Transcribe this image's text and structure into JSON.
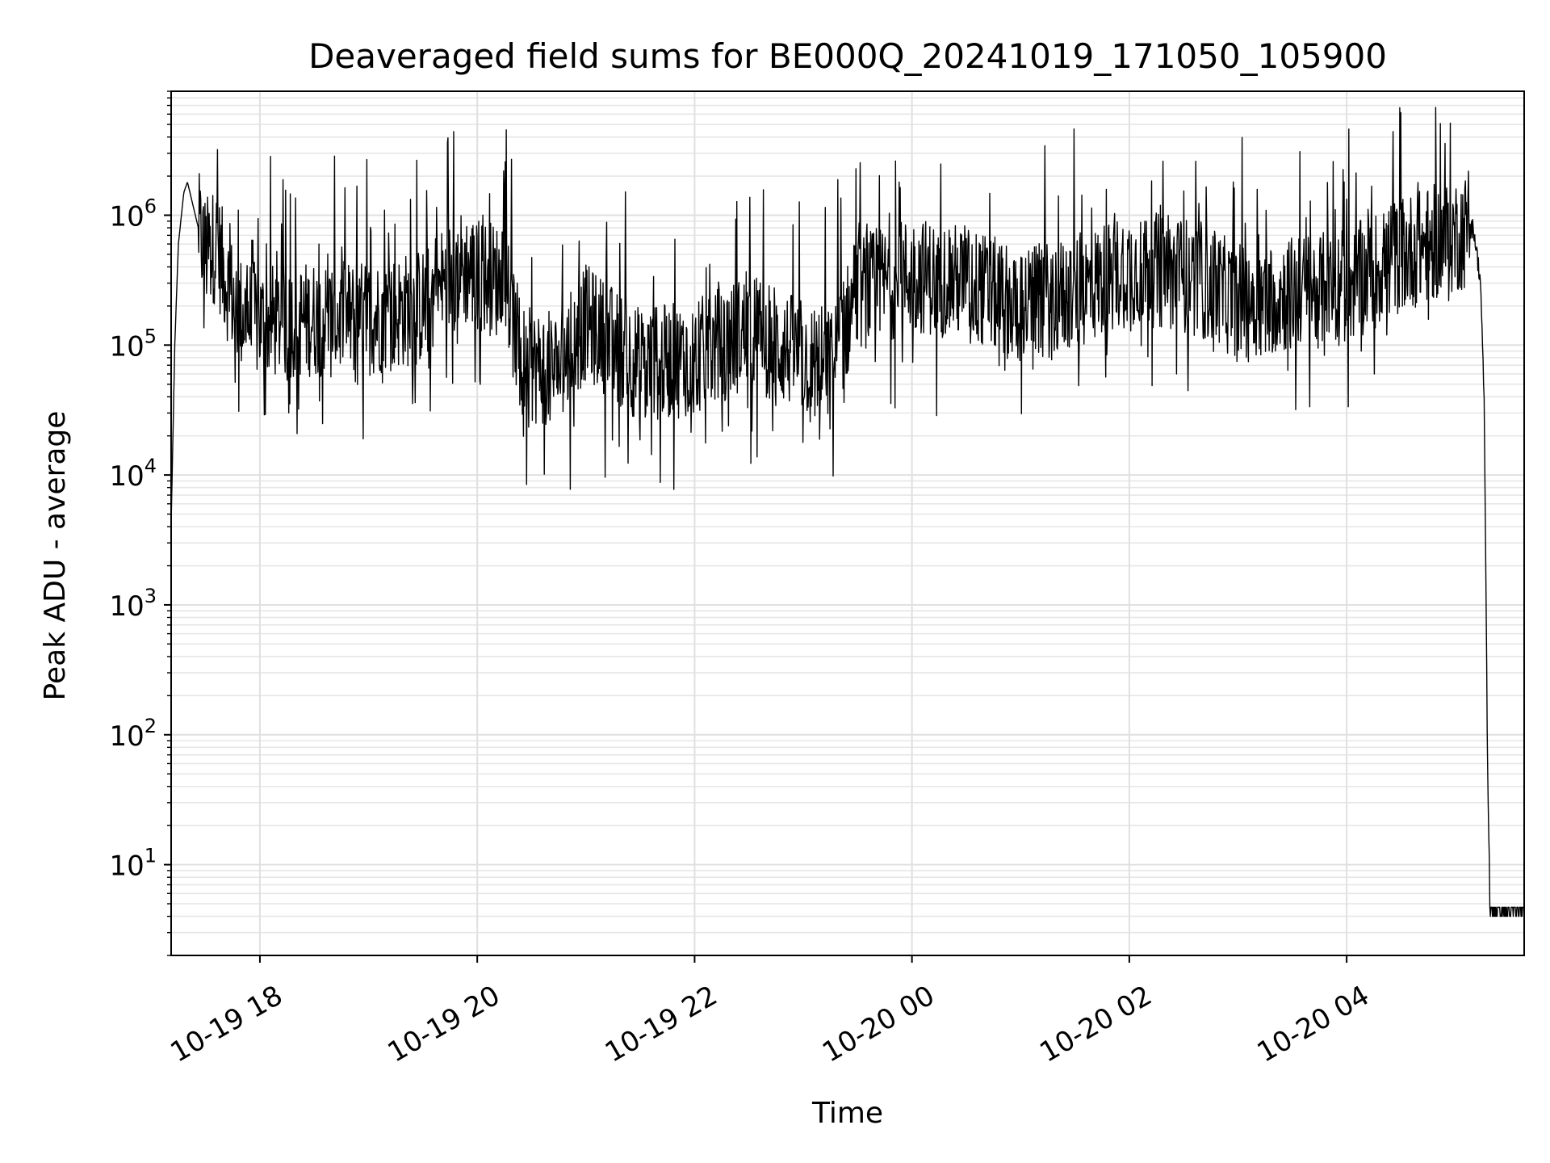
{
  "chart_data": {
    "type": "line",
    "title": "Deaveraged field sums for BE000Q_20241019_171050_105900",
    "xlabel": "Time",
    "ylabel": "Peak ADU - average",
    "yscale": "log",
    "grid": true,
    "xlim": [
      "2024-10-19 17:11",
      "2024-10-20 05:38"
    ],
    "ylim": [
      2,
      9000000
    ],
    "x_ticks": [
      {
        "value": "2024-10-19 18:00",
        "label": "10-19 18"
      },
      {
        "value": "2024-10-19 20:00",
        "label": "10-19 20"
      },
      {
        "value": "2024-10-19 22:00",
        "label": "10-19 22"
      },
      {
        "value": "2024-10-20 00:00",
        "label": "10-20 00"
      },
      {
        "value": "2024-10-20 02:00",
        "label": "10-20 02"
      },
      {
        "value": "2024-10-20 04:00",
        "label": "10-20 04"
      }
    ],
    "y_ticks": [
      {
        "value": 10,
        "base": "10",
        "exp": "1"
      },
      {
        "value": 100,
        "base": "10",
        "exp": "2"
      },
      {
        "value": 1000,
        "base": "10",
        "exp": "3"
      },
      {
        "value": 10000,
        "base": "10",
        "exp": "4"
      },
      {
        "value": 100000,
        "base": "10",
        "exp": "5"
      },
      {
        "value": 1000000,
        "base": "10",
        "exp": "6"
      }
    ],
    "series": [
      {
        "color": "#000000",
        "x": [
          "2024-10-19 17:11",
          "2024-10-19 17:13",
          "2024-10-19 17:15",
          "2024-10-19 17:18",
          "2024-10-19 17:20",
          "2024-10-19 17:23",
          "2024-10-19 17:27",
          "2024-10-19 17:30",
          "2024-10-19 17:36",
          "2024-10-19 17:42",
          "2024-10-19 17:48",
          "2024-10-19 18:00",
          "2024-10-19 18:30",
          "2024-10-19 19:00",
          "2024-10-19 19:30",
          "2024-10-19 19:50",
          "2024-10-19 20:15",
          "2024-10-19 20:25",
          "2024-10-19 20:45",
          "2024-10-19 21:00",
          "2024-10-19 21:30",
          "2024-10-19 22:00",
          "2024-10-19 22:30",
          "2024-10-19 23:00",
          "2024-10-19 23:15",
          "2024-10-19 23:30",
          "2024-10-20 00:00",
          "2024-10-20 00:30",
          "2024-10-20 01:00",
          "2024-10-20 01:30",
          "2024-10-20 02:00",
          "2024-10-20 02:30",
          "2024-10-20 03:00",
          "2024-10-20 03:30",
          "2024-10-20 04:00",
          "2024-10-20 04:30",
          "2024-10-20 05:00",
          "2024-10-20 05:10",
          "2024-10-20 05:14",
          "2024-10-20 05:16",
          "2024-10-20 05:17",
          "2024-10-20 05:18",
          "2024-10-20 05:19",
          "2024-10-20 05:20",
          "2024-10-20 05:38"
        ],
        "values": [
          4000,
          100000,
          600000,
          1500000,
          1800000,
          1200000,
          700000,
          500000,
          600000,
          300000,
          180000,
          150000,
          160000,
          160000,
          200000,
          400000,
          300000,
          70000,
          65000,
          150000,
          70000,
          80000,
          130000,
          80000,
          70000,
          250000,
          350000,
          300000,
          200000,
          250000,
          400000,
          350000,
          220000,
          250000,
          280000,
          500000,
          700000,
          800000,
          300000,
          30000,
          1000,
          30,
          10,
          4,
          4
        ]
      }
    ]
  }
}
